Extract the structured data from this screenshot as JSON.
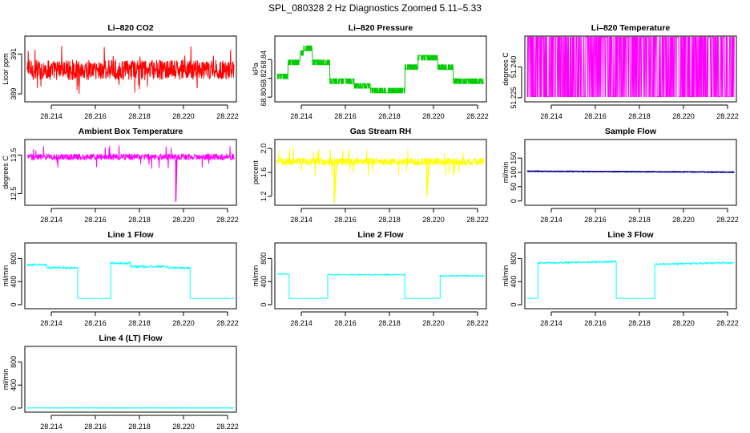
{
  "figure": {
    "title": "SPL_080328  2 Hz Diagnostics Zoomed 5.11–5.33"
  },
  "chart_data": [
    {
      "type": "line",
      "title": "Li–820 CO2",
      "ylabel": "Licor ppm",
      "xlim": [
        28.2128,
        28.2224
      ],
      "xticks": [
        "28.214",
        "28.216",
        "28.218",
        "28.220",
        "28.222"
      ],
      "ylim": [
        388.6,
        391.9
      ],
      "yticks": [
        "389",
        "391"
      ],
      "series": [
        {
          "color": "#ff0000",
          "kind": "noisy",
          "x": [
            28.2129,
            28.2223
          ],
          "y": [
            390.2,
            390.2
          ],
          "noise": 0.5,
          "spikes": 0.04,
          "spike_mag": 1.2,
          "lw": 1
        }
      ]
    },
    {
      "type": "line",
      "title": "Li–820 Pressure",
      "ylabel": "kPa",
      "xlim": [
        28.2128,
        28.2224
      ],
      "xticks": [
        "28.214",
        "28.216",
        "28.218",
        "28.220",
        "28.222"
      ],
      "ylim": [
        68.795,
        68.865
      ],
      "yticks": [
        "68.80",
        "68.82",
        "68.84"
      ],
      "series": [
        {
          "color": "#00cc00",
          "kind": "quantized",
          "step": 0.005,
          "x": [
            28.2129,
            28.2134,
            28.2134,
            28.21395,
            28.21395,
            28.2141,
            28.2141,
            28.2145,
            28.2145,
            28.2153,
            28.2153,
            28.2164,
            28.2164,
            28.21715,
            28.21715,
            28.2179,
            28.2179,
            28.2187,
            28.2187,
            28.2193,
            28.2193,
            28.2202,
            28.2202,
            28.2209,
            28.2209,
            28.2223
          ],
          "y": [
            68.8195,
            68.8195,
            68.8345,
            68.8345,
            68.8445,
            68.8445,
            68.8495,
            68.8495,
            68.8345,
            68.8345,
            68.8145,
            68.8145,
            68.8095,
            68.8095,
            68.8045,
            68.8045,
            68.8045,
            68.8045,
            68.8295,
            68.8295,
            68.8395,
            68.8395,
            68.8295,
            68.8295,
            68.8145,
            68.8145
          ],
          "lw": 1
        }
      ]
    },
    {
      "type": "line",
      "title": "Li–820 Temperature",
      "ylabel": "degrees C",
      "xlim": [
        28.2128,
        28.2224
      ],
      "xticks": [
        "28.214",
        "28.216",
        "28.218",
        "28.220",
        "28.222"
      ],
      "ylim": [
        51.223,
        51.255
      ],
      "yticks": [
        "51.225",
        "51.240"
      ],
      "series": [
        {
          "color": "#ff00ff",
          "kind": "binary",
          "x": [
            28.2129,
            28.2223
          ],
          "levels": [
            51.2255,
            51.2545
          ],
          "density": 600,
          "lw": 1
        }
      ]
    },
    {
      "type": "line",
      "title": "Ambient Box Temperature",
      "ylabel": "degrees C",
      "xlim": [
        28.2128,
        28.2224
      ],
      "xticks": [
        "28.214",
        "28.216",
        "28.218",
        "28.220",
        "28.222"
      ],
      "ylim": [
        12.2,
        13.9
      ],
      "yticks": [
        "12.5",
        "13.5"
      ],
      "series": [
        {
          "color": "#ff00ff",
          "kind": "noisy",
          "x": [
            28.2129,
            28.2223
          ],
          "y": [
            13.45,
            13.45
          ],
          "noise": 0.08,
          "spikes": 0.03,
          "spike_mag": 0.3,
          "lw": 1
        },
        {
          "color": "#ff00ff",
          "kind": "segments",
          "x": [
            28.21965,
            28.21965,
            28.2197
          ],
          "y": [
            13.4,
            12.3,
            13.4
          ],
          "lw": 1.5
        }
      ]
    },
    {
      "type": "line",
      "title": "Gas Stream RH",
      "ylabel": "percent",
      "xlim": [
        28.2128,
        28.2224
      ],
      "xticks": [
        "28.214",
        "28.216",
        "28.218",
        "28.220",
        "28.222"
      ],
      "ylim": [
        1.05,
        2.15
      ],
      "yticks": [
        "1.2",
        "1.6",
        "2.0"
      ],
      "series": [
        {
          "color": "#ffff00",
          "kind": "noisy",
          "x": [
            28.2129,
            28.2223
          ],
          "y": [
            1.78,
            1.78
          ],
          "noise": 0.06,
          "spikes": 0.04,
          "spike_mag": 0.25,
          "lw": 1
        },
        {
          "color": "#ffff00",
          "kind": "segments",
          "x": [
            28.2155,
            28.2155,
            28.2156,
            28.2197,
            28.2197,
            28.2198
          ],
          "y": [
            1.75,
            1.1,
            1.75,
            1.75,
            1.22,
            1.75
          ],
          "lw": 1.5
        }
      ]
    },
    {
      "type": "line",
      "title": "Sample Flow",
      "ylabel": "ml/min",
      "xlim": [
        28.2128,
        28.2224
      ],
      "xticks": [
        "28.214",
        "28.216",
        "28.218",
        "28.220",
        "28.222"
      ],
      "ylim": [
        -15,
        215
      ],
      "yticks": [
        "0",
        "50",
        "100",
        "150"
      ],
      "series": [
        {
          "color": "#00008b",
          "kind": "noisy",
          "x": [
            28.2129,
            28.2223
          ],
          "y": [
            104,
            101
          ],
          "noise": 1.2,
          "spikes": 0,
          "spike_mag": 0,
          "lw": 1.5
        }
      ]
    },
    {
      "type": "line",
      "title": "Line 1 Flow",
      "ylabel": "ml/min",
      "xlim": [
        28.2128,
        28.2224
      ],
      "xticks": [
        "28.214",
        "28.216",
        "28.218",
        "28.220",
        "28.222"
      ],
      "ylim": [
        -70,
        1070
      ],
      "yticks": [
        "0",
        "400",
        "800"
      ],
      "series": [
        {
          "color": "#00ffff",
          "kind": "flow",
          "noise": 20,
          "x": [
            28.2129,
            28.2138,
            28.2138,
            28.2152,
            28.2152,
            28.2167,
            28.2167,
            28.2176,
            28.2176,
            28.2193,
            28.2193,
            28.2203,
            28.2203,
            28.2223
          ],
          "y": [
            690,
            690,
            640,
            640,
            110,
            110,
            720,
            720,
            660,
            660,
            640,
            640,
            110,
            110
          ],
          "on": [
            1,
            1,
            1,
            1,
            0,
            0,
            1,
            1,
            1,
            1,
            1,
            1,
            0,
            0
          ],
          "lw": 1
        }
      ]
    },
    {
      "type": "line",
      "title": "Line 2 Flow",
      "ylabel": "ml/min",
      "xlim": [
        28.2128,
        28.2224
      ],
      "xticks": [
        "28.214",
        "28.216",
        "28.218",
        "28.220",
        "28.222"
      ],
      "ylim": [
        -70,
        1070
      ],
      "yticks": [
        "0",
        "400",
        "800"
      ],
      "series": [
        {
          "color": "#00ffff",
          "kind": "flow",
          "noise": 10,
          "x": [
            28.2129,
            28.21345,
            28.21345,
            28.2152,
            28.2152,
            28.2187,
            28.2187,
            28.2203,
            28.2203,
            28.2223
          ],
          "y": [
            530,
            530,
            110,
            110,
            520,
            520,
            110,
            110,
            500,
            500
          ],
          "on": [
            1,
            1,
            0,
            0,
            1,
            1,
            0,
            0,
            1,
            1
          ],
          "lw": 1
        }
      ]
    },
    {
      "type": "line",
      "title": "Line 3 Flow",
      "ylabel": "ml/min",
      "xlim": [
        28.2128,
        28.2224
      ],
      "xticks": [
        "28.214",
        "28.216",
        "28.218",
        "28.220",
        "28.222"
      ],
      "ylim": [
        -70,
        1070
      ],
      "yticks": [
        "0",
        "400",
        "800"
      ],
      "series": [
        {
          "color": "#00ffff",
          "kind": "flow",
          "noise": 16,
          "x": [
            28.2129,
            28.2134,
            28.2134,
            28.21695,
            28.21695,
            28.2187,
            28.2187,
            28.2223
          ],
          "y": [
            110,
            110,
            720,
            750,
            110,
            110,
            700,
            730
          ],
          "on": [
            0,
            0,
            1,
            1,
            0,
            0,
            1,
            1
          ],
          "lw": 1
        }
      ]
    },
    {
      "type": "line",
      "title": "Line 4 (LT) Flow",
      "ylabel": "ml/min",
      "xlim": [
        28.2128,
        28.2224
      ],
      "xticks": [
        "28.214",
        "28.216",
        "28.218",
        "28.220",
        "28.222"
      ],
      "ylim": [
        -70,
        1070
      ],
      "yticks": [
        "0",
        "400",
        "800"
      ],
      "series": [
        {
          "color": "#00ffff",
          "kind": "flow",
          "noise": 2,
          "x": [
            28.2129,
            28.2223
          ],
          "y": [
            3,
            3
          ],
          "on": [
            1,
            1
          ],
          "lw": 1.2
        }
      ]
    }
  ]
}
